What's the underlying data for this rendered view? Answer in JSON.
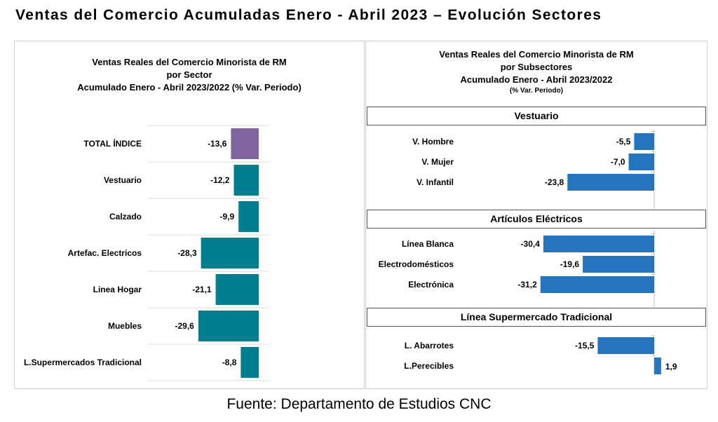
{
  "title": "Ventas del Comercio Acumuladas Enero - Abril 2023 – Evolución Sectores",
  "source": "Fuente: Departamento de Estudios CNC",
  "colors": {
    "total": "#8064a2",
    "sector": "#00808f",
    "subsector": "#2475be"
  },
  "chart_data": [
    {
      "type": "bar",
      "orientation": "horizontal",
      "title_lines": [
        "Ventas Reales del Comercio Minorista de RM",
        "por Sector",
        "Acumulado Enero - Abril 2023/2022 (% Var. Periodo)"
      ],
      "categories": [
        "TOTAL ÍNDICE",
        "Vestuario",
        "Calzado",
        "Artefac. Electricos",
        "Linea Hogar",
        "Muebles",
        "L.Supermercados Tradicional"
      ],
      "values": [
        -13.6,
        -12.2,
        -9.9,
        -28.3,
        -21.1,
        -29.6,
        -8.8
      ],
      "labels": [
        "-13,6",
        "-12,2",
        "-9,9",
        "-28,3",
        "-21,1",
        "-29,6",
        "-8,8"
      ]
    },
    {
      "type": "bar",
      "orientation": "horizontal",
      "title_lines": [
        "Ventas Reales del Comercio Minorista de RM",
        "por Subsectores",
        "Acumulado Enero - Abril 2023/2022"
      ],
      "subtitle": "(% Var. Periodo)",
      "groups": [
        {
          "name": "Vestuario",
          "categories": [
            "V. Hombre",
            "V. Mujer",
            "V. Infantil"
          ],
          "values": [
            -5.5,
            -7.0,
            -23.8
          ],
          "labels": [
            "-5,5",
            "-7,0",
            "-23,8"
          ]
        },
        {
          "name": "Artículos Eléctricos",
          "categories": [
            "Línea Blanca",
            "Electrodomésticos",
            "Electrónica"
          ],
          "values": [
            -30.4,
            -19.6,
            -31.2
          ],
          "labels": [
            "-30,4",
            "-19,6",
            "-31,2"
          ]
        },
        {
          "name": "Línea  Supermercado Tradicional",
          "categories": [
            "L. Abarrotes",
            "L.Perecibles"
          ],
          "values": [
            -15.5,
            1.9
          ],
          "labels": [
            "-15,5",
            "1,9"
          ]
        }
      ]
    }
  ]
}
